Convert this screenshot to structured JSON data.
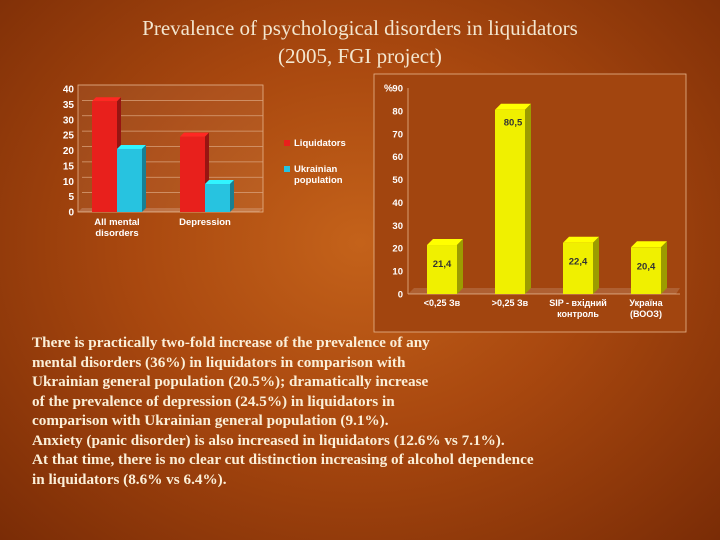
{
  "title": {
    "line1": "Prevalence of psychological disorders in liquidators",
    "line2": "(2005,  FGI project)"
  },
  "chart_data": [
    {
      "type": "bar",
      "categories": [
        [
          "All mental",
          "disorders"
        ],
        [
          "Depression"
        ]
      ],
      "series": [
        {
          "name": "Liquidators",
          "values": [
            36,
            24.5
          ],
          "color": "#e8201c"
        },
        {
          "name": "Ukrainian population",
          "values": [
            20.5,
            9.1
          ],
          "color": "#27c3e0"
        }
      ],
      "legend": {
        "placement": "right",
        "entries": [
          [
            "Liquidators"
          ],
          [
            "Ukrainian",
            "population"
          ]
        ]
      },
      "ylim": [
        0,
        40
      ],
      "yticks": [
        0,
        5,
        10,
        15,
        20,
        25,
        30,
        35,
        40
      ],
      "grid": true
    },
    {
      "type": "bar",
      "ylabel": "%",
      "categories": [
        [
          "<0,25 Зв"
        ],
        [
          ">0,25 Зв"
        ],
        [
          "SIP - вхідний",
          "контроль"
        ],
        [
          "Україна",
          "(ВООЗ)"
        ]
      ],
      "values": [
        21.4,
        80.5,
        22.4,
        20.4
      ],
      "data_labels": [
        "21,4",
        "80,5",
        "22,4",
        "20,4"
      ],
      "color": "#f0f000",
      "ylim": [
        0,
        90
      ],
      "yticks": [
        0,
        10,
        20,
        30,
        40,
        50,
        60,
        70,
        80,
        90
      ],
      "ytick_labels": [
        "0",
        "10",
        "20",
        "30",
        "40",
        "50",
        "60",
        "70",
        "80",
        "90"
      ],
      "grid": false
    }
  ],
  "body_text": [
    "There is practically two-fold increase of the prevalence of any",
    " mental disorders (36%) in liquidators in comparison with",
    "Ukrainian general population (20.5%); dramatically increase",
    "of the prevalence of depression (24.5%) in liquidators in",
    "comparison with Ukrainian general population (9.1%).",
    "Anxiety (panic disorder) is also increased in liquidators (12.6% vs 7.1%).",
    " At that time, there is no clear cut distinction  increasing of alcohol dependence",
    " in liquidators (8.6% vs 6.4%)."
  ]
}
